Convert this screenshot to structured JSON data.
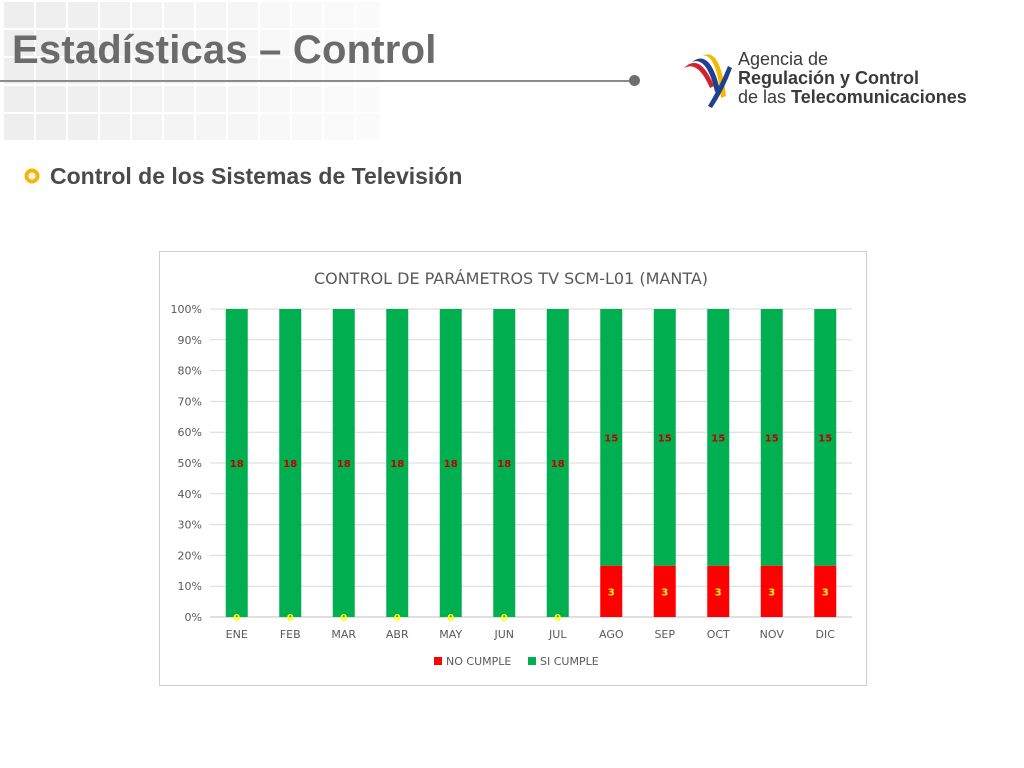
{
  "slide": {
    "title": "Estadísticas – Control",
    "subtitle": "Control de los Sistemas de Televisión"
  },
  "logo": {
    "line1": "Agencia de",
    "line2": "Regulación y Control",
    "line3_prefix": "de las ",
    "line3_bold": "Telecomunicaciones"
  },
  "colors": {
    "no_cumple": "#ff0000",
    "si_cumple": "#00b050",
    "accent_bullet": "#f5b800"
  },
  "chart_data": {
    "type": "bar",
    "stacked": "percent",
    "title": "CONTROL DE PARÁMETROS TV SCM-L01 (MANTA)",
    "categories": [
      "ENE",
      "FEB",
      "MAR",
      "ABR",
      "MAY",
      "JUN",
      "JUL",
      "AGO",
      "SEP",
      "OCT",
      "NOV",
      "DIC"
    ],
    "series": [
      {
        "name": "NO CUMPLE",
        "values": [
          0,
          0,
          0,
          0,
          0,
          0,
          0,
          3,
          3,
          3,
          3,
          3
        ]
      },
      {
        "name": "SI CUMPLE",
        "values": [
          18,
          18,
          18,
          18,
          18,
          18,
          18,
          15,
          15,
          15,
          15,
          15
        ]
      }
    ],
    "yticks": [
      "0%",
      "10%",
      "20%",
      "30%",
      "40%",
      "50%",
      "60%",
      "70%",
      "80%",
      "90%",
      "100%"
    ],
    "ylim": [
      0,
      100
    ],
    "grid": true,
    "legend": "bottom"
  }
}
